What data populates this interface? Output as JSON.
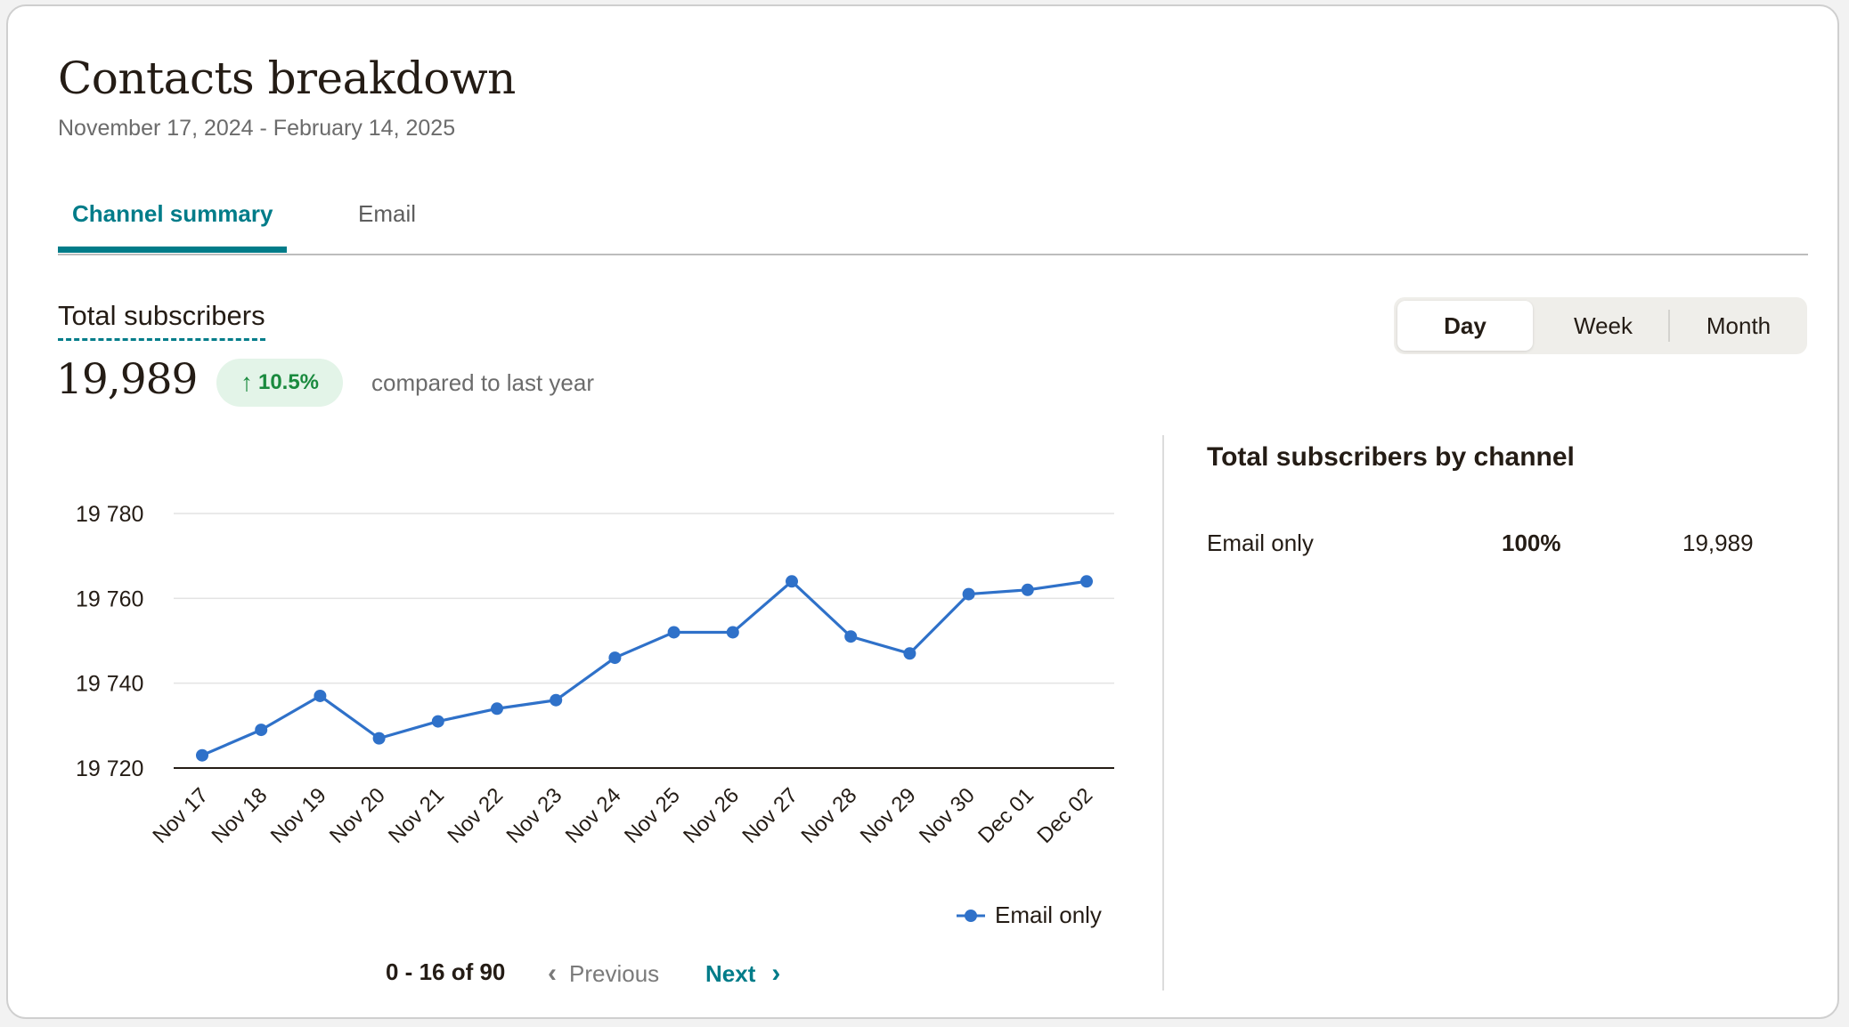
{
  "header": {
    "title": "Contacts breakdown",
    "date_range": "November 17, 2024 - February 14, 2025"
  },
  "tabs": [
    {
      "label": "Channel summary",
      "active": true
    },
    {
      "label": "Email",
      "active": false
    }
  ],
  "metric": {
    "label": "Total subscribers",
    "value": "19,989",
    "change": "10.5%",
    "change_direction": "up",
    "compared_text": "compared to last year"
  },
  "period_toggle": {
    "options": [
      "Day",
      "Week",
      "Month"
    ],
    "selected": "Day"
  },
  "chart_data": {
    "type": "line",
    "categories": [
      "Nov 17",
      "Nov 18",
      "Nov 19",
      "Nov 20",
      "Nov 21",
      "Nov 22",
      "Nov 23",
      "Nov 24",
      "Nov 25",
      "Nov 26",
      "Nov 27",
      "Nov 28",
      "Nov 29",
      "Nov 30",
      "Dec 01",
      "Dec 02"
    ],
    "series": [
      {
        "name": "Email only",
        "color": "#2f71c9",
        "values": [
          19723,
          19729,
          19737,
          19727,
          19731,
          19734,
          19736,
          19746,
          19752,
          19752,
          19764,
          19751,
          19747,
          19761,
          19762,
          19764
        ]
      }
    ],
    "yticks": [
      19720,
      19740,
      19760,
      19780
    ],
    "ytick_labels": [
      "19 720",
      "19 740",
      "19 760",
      "19 780"
    ],
    "ylim": [
      19720,
      19780
    ],
    "grid": true,
    "legend_position": "bottom-right"
  },
  "pagination": {
    "range_text": "0 - 16 of 90",
    "previous_label": "Previous",
    "next_label": "Next"
  },
  "by_channel": {
    "title": "Total subscribers by channel",
    "rows": [
      {
        "name": "Email only",
        "percent": "100%",
        "value": "19,989"
      }
    ]
  },
  "colors": {
    "accent": "#007c89",
    "positive": "#1a8a3e",
    "series": "#2f71c9"
  }
}
